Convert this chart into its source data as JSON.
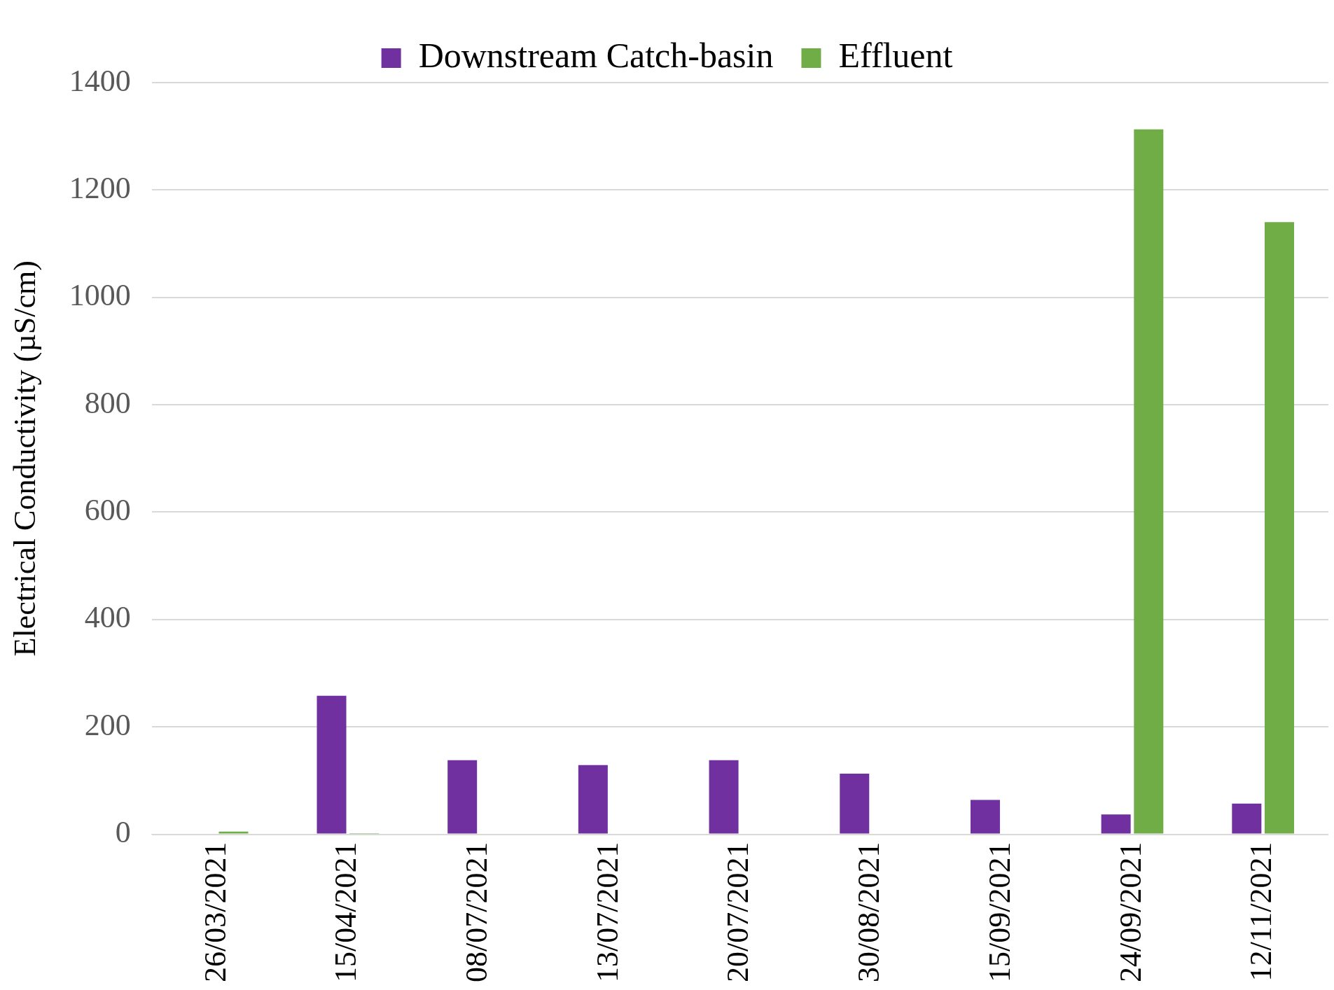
{
  "chart_data": {
    "type": "bar",
    "ylabel": "Electrical Conductivity (µS/cm)",
    "categories": [
      "26/03/2021",
      "15/04/2021",
      "08/07/2021",
      "13/07/2021",
      "20/07/2021",
      "30/08/2021",
      "15/09/2021",
      "24/09/2021",
      "12/11/2021"
    ],
    "series": [
      {
        "name": "Downstream Catch-basin",
        "color": "#7030a0",
        "values": [
          null,
          258,
          138,
          129,
          138,
          113,
          64,
          37,
          57
        ]
      },
      {
        "name": "Effluent",
        "color": "#70ad47",
        "values": [
          5,
          2,
          null,
          null,
          null,
          null,
          null,
          1313,
          1140
        ]
      }
    ],
    "ylim": [
      0,
      1400
    ],
    "yticks": [
      0,
      200,
      400,
      600,
      800,
      1000,
      1200,
      1400
    ],
    "grid": "y",
    "legend": "top"
  }
}
